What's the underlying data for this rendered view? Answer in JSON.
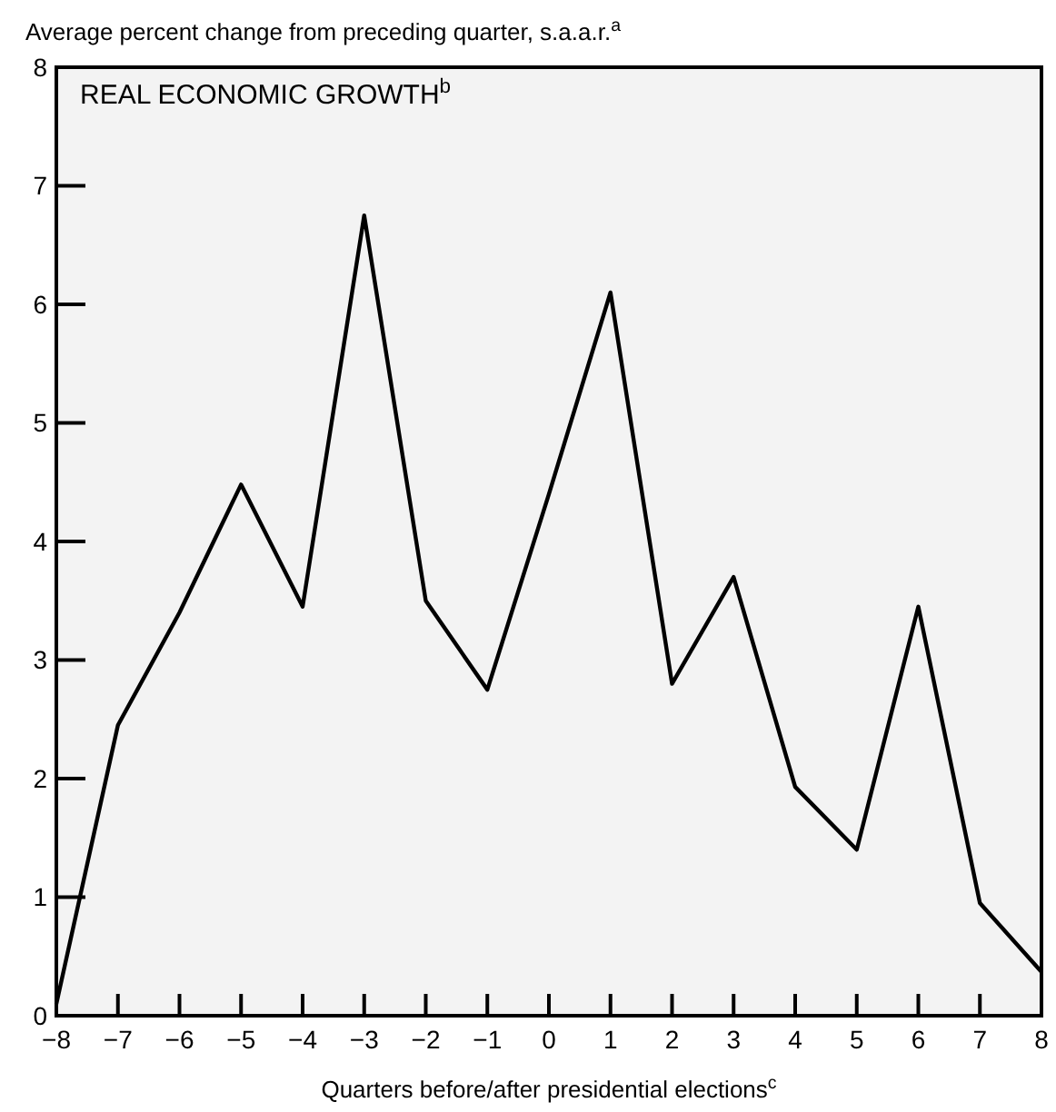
{
  "chart_data": {
    "type": "line",
    "title": "REAL ECONOMIC GROWTH$^{b}$",
    "ylabel": "Average percent change from preceding quarter, s.a.a.r.$^{a}$",
    "xlabel": "Quarters before/after presidential elections$^{c}$",
    "x": [
      -8,
      -7,
      -6,
      -5,
      -4,
      -3,
      -2,
      -1,
      0,
      1,
      2,
      3,
      4,
      5,
      6,
      7,
      8
    ],
    "series": [
      {
        "color": "#000000",
        "values": [
          0.1,
          2.45,
          3.4,
          4.48,
          3.45,
          6.75,
          3.5,
          2.75,
          4.4,
          6.1,
          2.8,
          3.7,
          1.93,
          1.4,
          3.45,
          0.95,
          0.37
        ]
      }
    ],
    "xlim": [
      -8,
      8
    ],
    "ylim": [
      0,
      8
    ],
    "xticks": [
      {
        "value": -8,
        "label": "−8"
      },
      {
        "value": -7,
        "label": "−7"
      },
      {
        "value": -6,
        "label": "−6"
      },
      {
        "value": -5,
        "label": "−5"
      },
      {
        "value": -4,
        "label": "−4"
      },
      {
        "value": -3,
        "label": "−3"
      },
      {
        "value": -2,
        "label": "−2"
      },
      {
        "value": -1,
        "label": "−1"
      },
      0,
      1,
      2,
      3,
      4,
      5,
      6,
      7,
      8
    ],
    "yticks": [
      0,
      1,
      2,
      3,
      4,
      5,
      6,
      7,
      8
    ],
    "grid": false,
    "marker": "none",
    "line_style": "solid"
  }
}
